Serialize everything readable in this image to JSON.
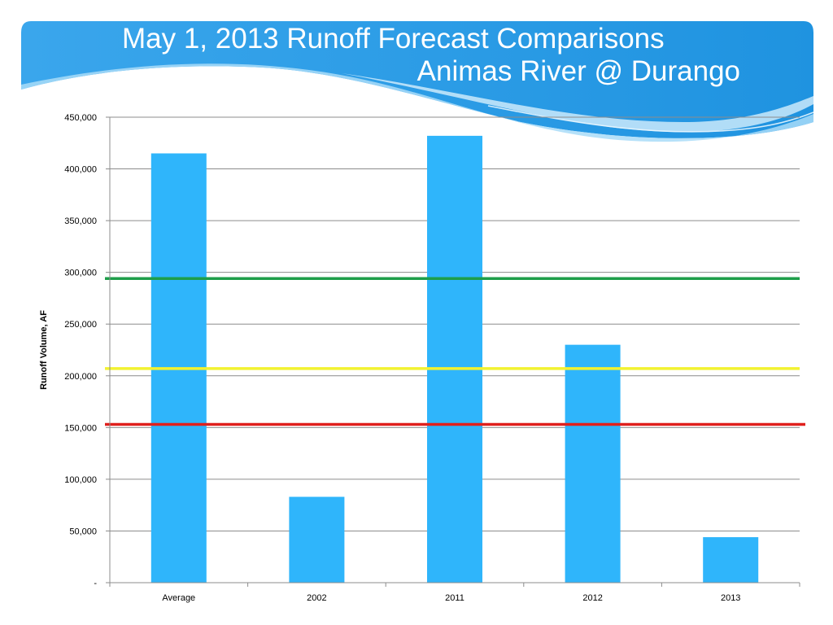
{
  "slide": {
    "title_line1": "May 1, 2013 Runoff Forecast Comparisons",
    "title_line2": "Animas River @ Durango",
    "colors": {
      "banner": "#2a9be6",
      "banner_light": "#8fd0f6",
      "title_text": "#ffffff"
    }
  },
  "chart_data": {
    "type": "bar",
    "title": "",
    "xlabel": "",
    "ylabel": "Runoff Volume, AF",
    "categories": [
      "Average",
      "2002",
      "2011",
      "2012",
      "2013"
    ],
    "values": [
      415000,
      83000,
      432000,
      230000,
      44000
    ],
    "ylim": [
      0,
      450000
    ],
    "yticks": [
      0,
      50000,
      100000,
      150000,
      200000,
      250000,
      300000,
      350000,
      400000,
      450000
    ],
    "ytick_labels": [
      "-",
      "50,000",
      "100,000",
      "150,000",
      "200,000",
      "250,000",
      "300,000",
      "350,000",
      "400,000",
      "450,000"
    ],
    "grid": true,
    "bar_color": "#2fb5fb",
    "reference_lines": [
      {
        "value": 294000,
        "color": "#1e9e4a"
      },
      {
        "value": 207000,
        "color": "#f2f230"
      },
      {
        "value": 153000,
        "color": "#e0201d"
      }
    ]
  }
}
